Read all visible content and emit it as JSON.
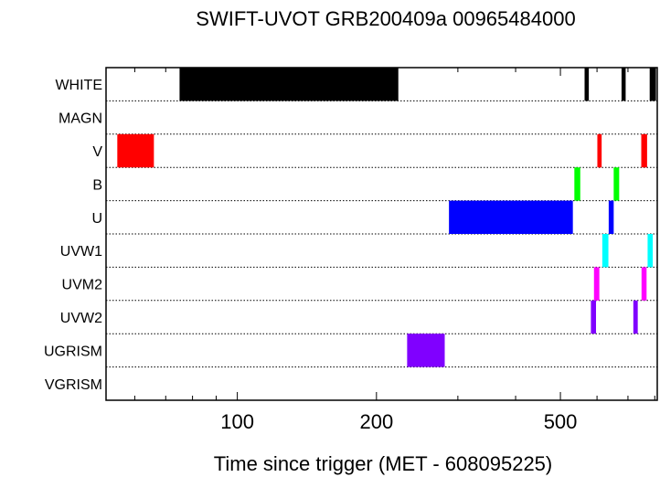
{
  "chart_data": {
    "type": "bar",
    "title": "SWIFT-UVOT GRB200409a 00965484000",
    "xlabel": "Time since trigger (MET - 608095225)",
    "ylabel": "",
    "x_scale": "log",
    "xlim": [
      52,
      810
    ],
    "x_ticks": [
      {
        "value": 100,
        "label": "100"
      },
      {
        "value": 200,
        "label": "200"
      },
      {
        "value": 500,
        "label": "500"
      }
    ],
    "categories": [
      "WHITE",
      "MAGN",
      "V",
      "B",
      "U",
      "UVW1",
      "UVM2",
      "UVW2",
      "UGRISM",
      "VGRISM"
    ],
    "segments": [
      {
        "filter": "WHITE",
        "start": 75,
        "end": 223,
        "color": "#000000"
      },
      {
        "filter": "WHITE",
        "start": 564,
        "end": 576,
        "color": "#000000"
      },
      {
        "filter": "WHITE",
        "start": 678,
        "end": 692,
        "color": "#000000"
      },
      {
        "filter": "WHITE",
        "start": 780,
        "end": 805,
        "color": "#000000"
      },
      {
        "filter": "V",
        "start": 55,
        "end": 66,
        "color": "#ff0000"
      },
      {
        "filter": "V",
        "start": 601,
        "end": 614,
        "color": "#ff0000"
      },
      {
        "filter": "V",
        "start": 748,
        "end": 770,
        "color": "#ff0000"
      },
      {
        "filter": "B",
        "start": 536,
        "end": 552,
        "color": "#00ff00"
      },
      {
        "filter": "B",
        "start": 652,
        "end": 670,
        "color": "#00ff00"
      },
      {
        "filter": "U",
        "start": 287,
        "end": 532,
        "color": "#0000ff"
      },
      {
        "filter": "U",
        "start": 636,
        "end": 652,
        "color": "#0000ff"
      },
      {
        "filter": "UVW1",
        "start": 616,
        "end": 635,
        "color": "#00ffff"
      },
      {
        "filter": "UVW1",
        "start": 772,
        "end": 792,
        "color": "#00ffff"
      },
      {
        "filter": "UVM2",
        "start": 591,
        "end": 607,
        "color": "#ff00ff"
      },
      {
        "filter": "UVM2",
        "start": 749,
        "end": 768,
        "color": "#ff00ff"
      },
      {
        "filter": "UVW2",
        "start": 582,
        "end": 597,
        "color": "#8000ff"
      },
      {
        "filter": "UVW2",
        "start": 719,
        "end": 735,
        "color": "#8000ff"
      },
      {
        "filter": "UGRISM",
        "start": 233,
        "end": 281,
        "color": "#8000ff"
      }
    ],
    "grid": "dotted-rows",
    "legend": "none"
  }
}
